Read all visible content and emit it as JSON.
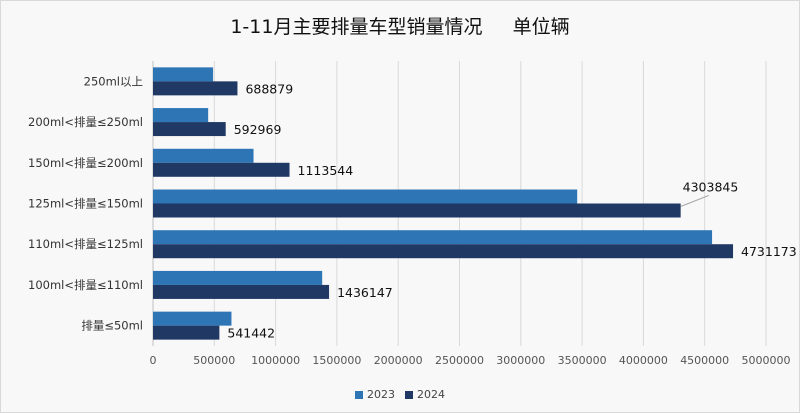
{
  "chart_data": {
    "type": "bar",
    "orientation": "horizontal",
    "title": "1-11月主要排量车型销量情况     单位辆",
    "categories": [
      "250ml以上",
      "200ml<排量≤250ml",
      "150ml<排量≤200ml",
      "125ml<排量≤150ml",
      "110ml<排量≤125ml",
      "100ml<排量≤110ml",
      "排量≤50ml"
    ],
    "series": [
      {
        "name": "2023",
        "color": "#2e75b6",
        "values": [
          490000,
          450000,
          820000,
          3460000,
          4560000,
          1380000,
          640000
        ]
      },
      {
        "name": "2024",
        "color": "#203864",
        "values": [
          688879,
          592969,
          1113544,
          4303845,
          4731173,
          1436147,
          541442
        ],
        "data_labels": [
          "688879",
          "592969",
          "1113544",
          "4303845",
          "4731173",
          "1436147",
          "541442"
        ]
      }
    ],
    "xlim": [
      0,
      5000000
    ],
    "x_ticks": [
      "0",
      "500000",
      "1000000",
      "1500000",
      "2000000",
      "2500000",
      "3000000",
      "3500000",
      "4000000",
      "4500000",
      "5000000"
    ],
    "grid": "vertical",
    "legend_position": "bottom"
  }
}
